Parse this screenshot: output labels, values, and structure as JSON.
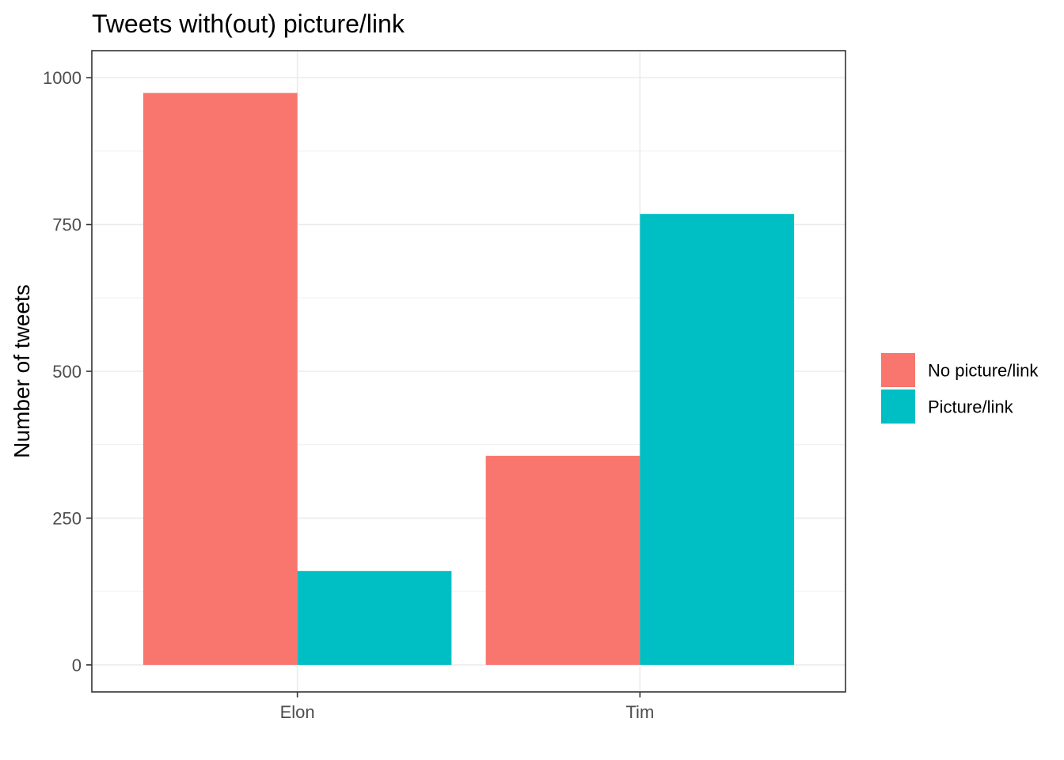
{
  "chart_data": {
    "type": "bar",
    "title": "Tweets with(out) picture/link",
    "xlabel": "",
    "ylabel": "Number of tweets",
    "categories": [
      "Elon",
      "Tim"
    ],
    "series": [
      {
        "name": "No picture/link",
        "color": "#F8766D",
        "values": [
          974,
          356
        ]
      },
      {
        "name": "Picture/link",
        "color": "#00BFC4",
        "values": [
          160,
          768
        ]
      }
    ],
    "ylim": [
      -46,
      1046
    ],
    "yticks": [
      0,
      250,
      500,
      750,
      1000
    ],
    "grid": true,
    "legend_position": "right"
  }
}
